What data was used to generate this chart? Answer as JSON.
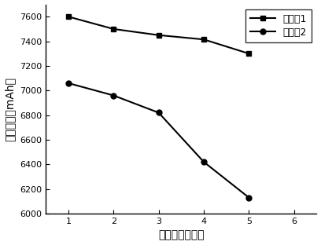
{
  "group1_x": [
    1,
    2,
    3,
    4,
    5
  ],
  "group1_y": [
    7600,
    7500,
    7450,
    7415,
    7300
  ],
  "group2_x": [
    1,
    2,
    3,
    4,
    5
  ],
  "group2_y": [
    7060,
    6960,
    6820,
    6420,
    6130
  ],
  "legend1": "电池组1",
  "legend2": "电池组2",
  "xlabel": "循环次数（次）",
  "ylabel": "充电容量（mAh）",
  "xlim": [
    0.5,
    6.5
  ],
  "ylim": [
    6000,
    7700
  ],
  "xticks": [
    1,
    2,
    3,
    4,
    5,
    6
  ],
  "yticks": [
    6000,
    6200,
    6400,
    6600,
    6800,
    7000,
    7200,
    7400,
    7600
  ],
  "line_color": "#000000",
  "marker1": "s",
  "marker2": "o",
  "markersize": 5,
  "linewidth": 1.5,
  "tick_fontsize": 8,
  "label_fontsize": 10,
  "legend_fontsize": 9
}
